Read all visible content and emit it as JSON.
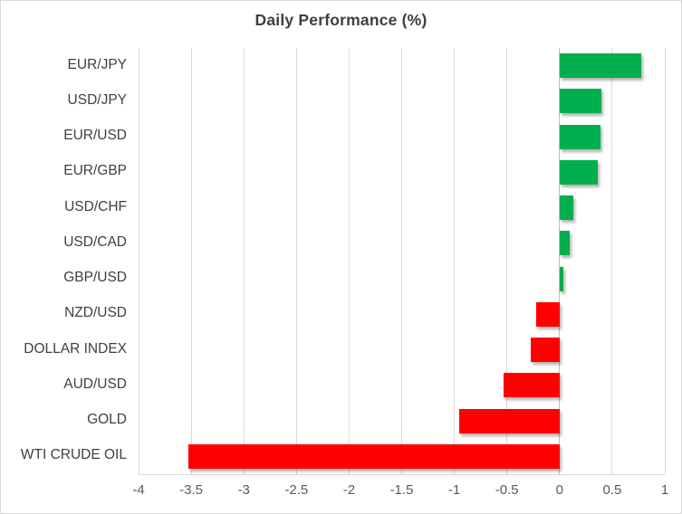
{
  "chart_data": {
    "type": "bar",
    "orientation": "horizontal",
    "title": "Daily Performance (%)",
    "categories": [
      "EUR/JPY",
      "USD/JPY",
      "EUR/USD",
      "EUR/GBP",
      "USD/CHF",
      "USD/CAD",
      "GBP/USD",
      "NZD/USD",
      "DOLLAR INDEX",
      "AUD/USD",
      "GOLD",
      "WTI CRUDE OIL"
    ],
    "values": [
      0.78,
      0.4,
      0.39,
      0.36,
      0.13,
      0.1,
      0.04,
      -0.22,
      -0.27,
      -0.53,
      -0.95,
      -3.53
    ],
    "xlabel": "",
    "ylabel": "",
    "xlim": [
      -4,
      1
    ],
    "x_ticks": [
      -4,
      -3.5,
      -3,
      -2.5,
      -2,
      -1.5,
      -1,
      -0.5,
      0,
      0.5,
      1
    ],
    "x_tick_labels": [
      "-4",
      "-3.5",
      "-3",
      "-2.5",
      "-2",
      "-1.5",
      "-1",
      "-0.5",
      "0",
      "0.5",
      "1"
    ],
    "grid": true,
    "legend_position": "none",
    "colors": {
      "positive_bar": "#00AE4E",
      "negative_bar": "#FF0000",
      "gridline": "#D9D9D9",
      "zero_axis": "#BFBFBF",
      "title_text": "#3F3F3F",
      "category_text": "#404040",
      "tick_text": "#595959",
      "frame_border": "#D9D9D9"
    }
  }
}
